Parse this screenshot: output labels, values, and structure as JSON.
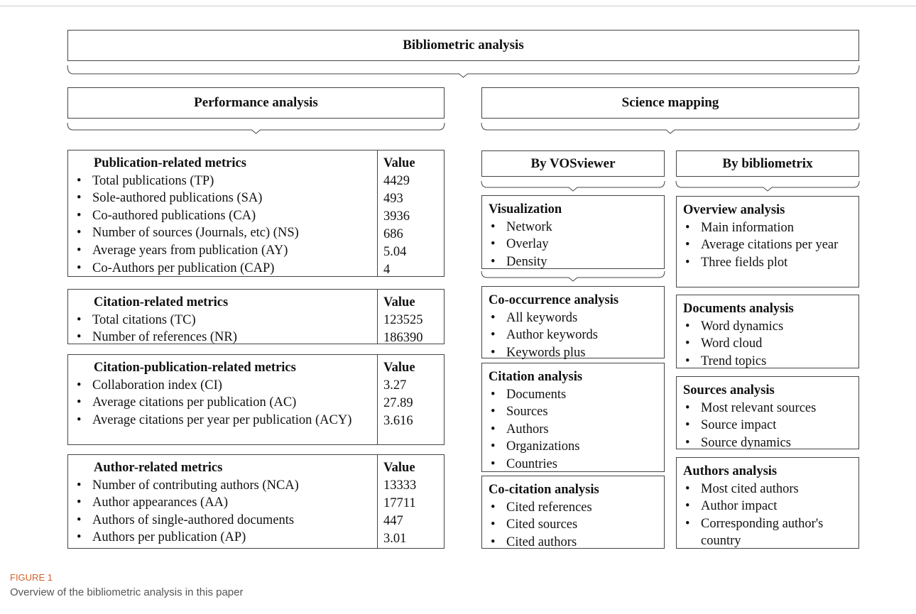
{
  "title": "Bibliometric analysis",
  "performance": {
    "title": "Performance analysis",
    "sections": [
      {
        "heading": "Publication-related metrics",
        "value_heading": "Value",
        "rows": [
          {
            "label": "Total publications (TP)",
            "value": "4429"
          },
          {
            "label": "Sole-authored publications (SA)",
            "value": "493"
          },
          {
            "label": "Co-authored publications (CA)",
            "value": "3936"
          },
          {
            "label": "Number of sources (Journals, etc) (NS)",
            "value": "686"
          },
          {
            "label": "Average years from publication (AY)",
            "value": "5.04"
          },
          {
            "label": "Co-Authors per publication (CAP)",
            "value": "4"
          }
        ]
      },
      {
        "heading": "Citation-related metrics",
        "value_heading": "Value",
        "rows": [
          {
            "label": "Total citations (TC)",
            "value": "123525"
          },
          {
            "label": "Number of references (NR)",
            "value": "186390"
          }
        ]
      },
      {
        "heading": "Citation-publication-related metrics",
        "value_heading": "Value",
        "rows": [
          {
            "label": "Collaboration index (CI)",
            "value": "3.27"
          },
          {
            "label": "Average citations per publication (AC)",
            "value": "27.89"
          },
          {
            "label": "Average citations per year per publication (ACY)",
            "value": "3.616"
          }
        ]
      },
      {
        "heading": "Author-related metrics",
        "value_heading": "Value",
        "rows": [
          {
            "label": "Number of contributing authors (NCA)",
            "value": "13333"
          },
          {
            "label": "Author appearances (AA)",
            "value": "17711"
          },
          {
            "label": "Authors of single-authored documents",
            "value": "447"
          },
          {
            "label": "Authors per publication (AP)",
            "value": "3.01"
          }
        ]
      }
    ]
  },
  "science_mapping": {
    "title": "Science mapping",
    "columns": [
      {
        "title": "By VOSviewer",
        "groups": [
          {
            "heading": "Visualization",
            "items": [
              "Network",
              "Overlay",
              "Density"
            ]
          },
          {
            "heading": "Co-occurrence analysis",
            "items": [
              "All keywords",
              "Author keywords",
              "Keywords plus"
            ]
          },
          {
            "heading": "Citation analysis",
            "items": [
              "Documents",
              "Sources",
              "Authors",
              "Organizations",
              "Countries"
            ]
          },
          {
            "heading": "Co-citation analysis",
            "items": [
              "Cited references",
              "Cited sources",
              "Cited authors"
            ]
          }
        ]
      },
      {
        "title": "By bibliometrix",
        "groups": [
          {
            "heading": "Overview analysis",
            "items": [
              "Main information",
              "Average citations per year",
              "Three fields plot"
            ]
          },
          {
            "heading": "Documents analysis",
            "items": [
              "Word dynamics",
              "Word cloud",
              "Trend topics"
            ]
          },
          {
            "heading": "Sources analysis",
            "items": [
              "Most relevant sources",
              "Source impact",
              "Source dynamics"
            ]
          },
          {
            "heading": "Authors analysis",
            "items": [
              "Most cited authors",
              "Author impact",
              "Corresponding author's country"
            ]
          }
        ]
      }
    ]
  },
  "caption": {
    "label": "FIGURE 1",
    "text": "Overview of the bibliometric analysis in this paper"
  }
}
